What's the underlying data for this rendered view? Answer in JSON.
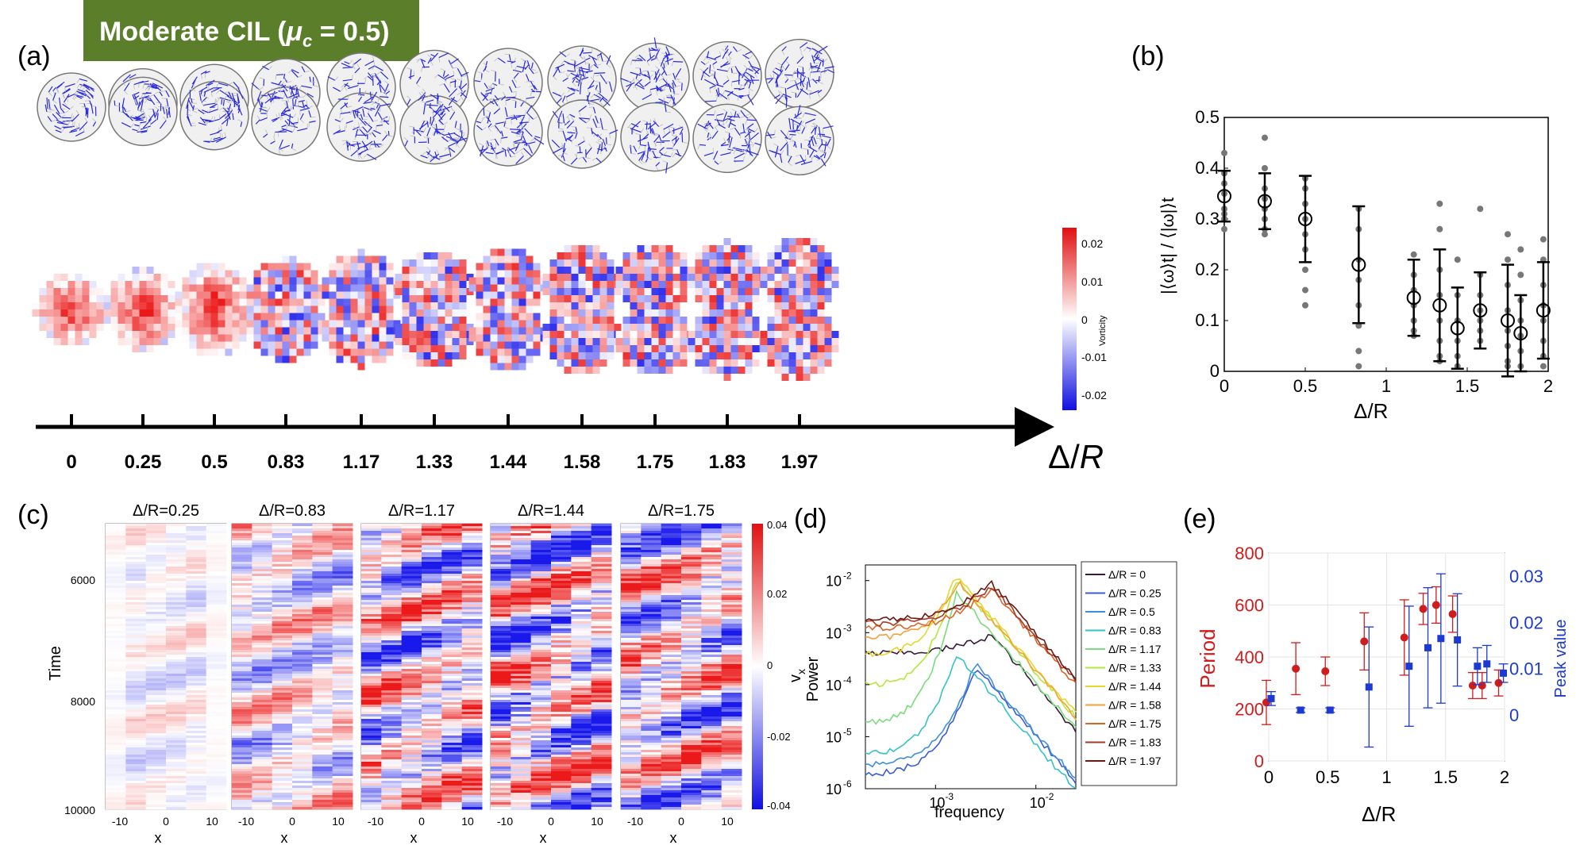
{
  "banner": {
    "label": "Moderate CIL (",
    "mu": "μ",
    "mu_sub": "c",
    "suffix": " = 0.5)",
    "color": "#5b7e2b"
  },
  "panels": {
    "a": "(a)",
    "b": "(b)",
    "c": "(c)",
    "d": "(d)",
    "e": "(e)"
  },
  "panel_a": {
    "delta_values": [
      "0",
      "0.25",
      "0.5",
      "0.83",
      "1.17",
      "1.33",
      "1.44",
      "1.58",
      "1.75",
      "1.83",
      "1.97"
    ],
    "axis_symbol": "Δ",
    "axis_var": "R",
    "colorbar": {
      "label": "Vorticity",
      "ticks": [
        "0.02",
        "0.01",
        "0",
        "-0.01",
        "-0.02"
      ],
      "min": -0.025,
      "max": 0.025
    }
  },
  "chart_data": [
    {
      "id": "b",
      "type": "scatter",
      "title": "",
      "xlabel": "Δ/R",
      "ylabel": "|⟨ω⟩t| / ⟨|ω|⟩t",
      "xlim": [
        0,
        2
      ],
      "ylim": [
        0,
        0.5
      ],
      "xticks": [
        "0",
        "0.5",
        "1",
        "1.5",
        "2"
      ],
      "yticks": [
        "0",
        "0.1",
        "0.2",
        "0.3",
        "0.4",
        "0.5"
      ],
      "series": [
        {
          "name": "mean",
          "x": [
            0,
            0.25,
            0.5,
            0.83,
            1.17,
            1.33,
            1.44,
            1.58,
            1.75,
            1.83,
            1.97
          ],
          "values": [
            0.345,
            0.335,
            0.3,
            0.21,
            0.145,
            0.13,
            0.085,
            0.12,
            0.1,
            0.075,
            0.12
          ],
          "error": [
            0.05,
            0.055,
            0.085,
            0.115,
            0.075,
            0.11,
            0.08,
            0.075,
            0.11,
            0.075,
            0.095
          ]
        },
        {
          "name": "samples",
          "points": [
            [
              0,
              0.43
            ],
            [
              0,
              0.39
            ],
            [
              0,
              0.37
            ],
            [
              0,
              0.35
            ],
            [
              0,
              0.32
            ],
            [
              0,
              0.31
            ],
            [
              0,
              0.3
            ],
            [
              0,
              0.28
            ],
            [
              0.25,
              0.46
            ],
            [
              0.25,
              0.4
            ],
            [
              0.25,
              0.36
            ],
            [
              0.25,
              0.34
            ],
            [
              0.25,
              0.32
            ],
            [
              0.25,
              0.3
            ],
            [
              0.25,
              0.28
            ],
            [
              0.25,
              0.27
            ],
            [
              0.5,
              0.38
            ],
            [
              0.5,
              0.36
            ],
            [
              0.5,
              0.33
            ],
            [
              0.5,
              0.3
            ],
            [
              0.5,
              0.27
            ],
            [
              0.5,
              0.24
            ],
            [
              0.5,
              0.2
            ],
            [
              0.5,
              0.16
            ],
            [
              0.5,
              0.13
            ],
            [
              0.83,
              0.32
            ],
            [
              0.83,
              0.28
            ],
            [
              0.83,
              0.22
            ],
            [
              0.83,
              0.18
            ],
            [
              0.83,
              0.13
            ],
            [
              0.83,
              0.09
            ],
            [
              0.83,
              0.04
            ],
            [
              0.83,
              0.01
            ],
            [
              1.17,
              0.23
            ],
            [
              1.17,
              0.19
            ],
            [
              1.17,
              0.16
            ],
            [
              1.17,
              0.13
            ],
            [
              1.17,
              0.1
            ],
            [
              1.17,
              0.08
            ],
            [
              1.17,
              0.07
            ],
            [
              1.33,
              0.33
            ],
            [
              1.33,
              0.28
            ],
            [
              1.33,
              0.2
            ],
            [
              1.33,
              0.15
            ],
            [
              1.33,
              0.1
            ],
            [
              1.33,
              0.06
            ],
            [
              1.33,
              0.03
            ],
            [
              1.33,
              0.02
            ],
            [
              1.44,
              0.22
            ],
            [
              1.44,
              0.15
            ],
            [
              1.44,
              0.1
            ],
            [
              1.44,
              0.06
            ],
            [
              1.44,
              0.03
            ],
            [
              1.44,
              0.01
            ],
            [
              1.58,
              0.32
            ],
            [
              1.58,
              0.19
            ],
            [
              1.58,
              0.15
            ],
            [
              1.58,
              0.12
            ],
            [
              1.58,
              0.1
            ],
            [
              1.58,
              0.08
            ],
            [
              1.58,
              0.06
            ],
            [
              1.75,
              0.27
            ],
            [
              1.75,
              0.22
            ],
            [
              1.75,
              0.17
            ],
            [
              1.75,
              0.12
            ],
            [
              1.75,
              0.08
            ],
            [
              1.75,
              0.05
            ],
            [
              1.75,
              0.02
            ],
            [
              1.75,
              0.01
            ],
            [
              1.83,
              0.24
            ],
            [
              1.83,
              0.19
            ],
            [
              1.83,
              0.14
            ],
            [
              1.83,
              0.1
            ],
            [
              1.83,
              0.07
            ],
            [
              1.83,
              0.04
            ],
            [
              1.83,
              0.01
            ],
            [
              1.97,
              0.26
            ],
            [
              1.97,
              0.22
            ],
            [
              1.97,
              0.17
            ],
            [
              1.97,
              0.13
            ],
            [
              1.97,
              0.1
            ],
            [
              1.97,
              0.06
            ],
            [
              1.97,
              0.03
            ],
            [
              1.97,
              0.01
            ]
          ]
        }
      ]
    },
    {
      "id": "c",
      "type": "heatmap",
      "xlabel": "x",
      "ylabel": "Time",
      "titles": [
        "Δ/R=0.25",
        "Δ/R=0.83",
        "Δ/R=1.17",
        "Δ/R=1.44",
        "Δ/R=1.75"
      ],
      "intensity": [
        0.22,
        0.55,
        0.85,
        1.0,
        0.85
      ],
      "xticks": [
        "-10",
        "0",
        "10"
      ],
      "yticks": [
        "6000",
        "8000",
        "10000"
      ],
      "ylim": [
        5000,
        10000
      ],
      "colorbar": {
        "label": "v",
        "label_sub": "x",
        "ticks": [
          "0.04",
          "0.02",
          "0",
          "-0.02",
          "-0.04"
        ]
      }
    },
    {
      "id": "d",
      "type": "line",
      "xlabel": "frequency",
      "ylabel": "Power",
      "xscale": "log",
      "yscale": "log",
      "xlim": [
        0.0002,
        0.025
      ],
      "ylim": [
        1e-06,
        0.02
      ],
      "xticks": [
        "10",
        "10"
      ],
      "xtick_exp": [
        "-3",
        "-2"
      ],
      "yticks": [
        "10",
        "10",
        "10",
        "10",
        "10"
      ],
      "ytick_exp": [
        "-6",
        "-5",
        "-4",
        "-3",
        "-2"
      ],
      "legend": [
        "Δ/R = 0",
        "Δ/R = 0.25",
        "Δ/R = 0.5",
        "Δ/R = 0.83",
        "Δ/R = 1.17",
        "Δ/R = 1.33",
        "Δ/R = 1.44",
        "Δ/R = 1.58",
        "Δ/R = 1.75",
        "Δ/R = 1.83",
        "Δ/R = 1.97"
      ],
      "series_colors": [
        "#3a1a3a",
        "#3b5bd6",
        "#3d8fdc",
        "#36c2c4",
        "#78dd7c",
        "#b5e63d",
        "#e8d62a",
        "#f2a23a",
        "#d9652a",
        "#a83a24",
        "#6a1a12"
      ],
      "series": [
        {
          "name": "Δ/R = 0",
          "low": 0.0004,
          "peak_f": 0.0036,
          "peak_p": 0.0009
        },
        {
          "name": "Δ/R = 0.25",
          "low": 2e-06,
          "peak_f": 0.0025,
          "peak_p": 0.00022
        },
        {
          "name": "Δ/R = 0.5",
          "low": 3e-06,
          "peak_f": 0.0025,
          "peak_p": 0.00025
        },
        {
          "name": "Δ/R = 0.83",
          "low": 5e-06,
          "peak_f": 0.0016,
          "peak_p": 0.0004
        },
        {
          "name": "Δ/R = 1.17",
          "low": 2e-05,
          "peak_f": 0.0016,
          "peak_p": 0.006
        },
        {
          "name": "Δ/R = 1.33",
          "low": 0.0001,
          "peak_f": 0.0016,
          "peak_p": 0.01
        },
        {
          "name": "Δ/R = 1.44",
          "low": 0.0004,
          "peak_f": 0.0016,
          "peak_p": 0.012
        },
        {
          "name": "Δ/R = 1.58",
          "low": 0.0008,
          "peak_f": 0.0017,
          "peak_p": 0.009
        },
        {
          "name": "Δ/R = 1.75",
          "low": 0.0012,
          "peak_f": 0.0036,
          "peak_p": 0.007
        },
        {
          "name": "Δ/R = 1.83",
          "low": 0.0015,
          "peak_f": 0.0036,
          "peak_p": 0.008
        },
        {
          "name": "Δ/R = 1.97",
          "low": 0.0018,
          "peak_f": 0.0036,
          "peak_p": 0.009
        }
      ]
    },
    {
      "id": "e",
      "type": "scatter",
      "xlabel": "Δ/R",
      "ylabel_left": "Period",
      "ylabel_right": "Peak value",
      "xlim": [
        0,
        2
      ],
      "ylim_left": [
        0,
        800
      ],
      "ylim_right": [
        -0.01,
        0.035
      ],
      "xticks": [
        "0",
        "0.5",
        "1",
        "1.5",
        "2"
      ],
      "yticks_left": [
        "0",
        "200",
        "400",
        "600",
        "800"
      ],
      "yticks_right": [
        "0",
        "0.01",
        "0.02",
        "0.03"
      ],
      "series": [
        {
          "name": "Period",
          "axis": "left",
          "color": "#d01c1c",
          "marker": "circle",
          "x": [
            0,
            0.25,
            0.5,
            0.83,
            1.17,
            1.33,
            1.44,
            1.58,
            1.75,
            1.83,
            1.97
          ],
          "values": [
            225,
            355,
            345,
            460,
            475,
            585,
            600,
            565,
            290,
            290,
            300
          ],
          "error": [
            85,
            100,
            55,
            110,
            145,
            60,
            70,
            70,
            50,
            50,
            50
          ]
        },
        {
          "name": "Peak value",
          "axis": "right",
          "color": "#1c3ad0",
          "marker": "square",
          "x": [
            0,
            0.25,
            0.5,
            0.83,
            1.17,
            1.33,
            1.44,
            1.58,
            1.75,
            1.83,
            1.97
          ],
          "values": [
            0.0035,
            0.001,
            0.001,
            0.006,
            0.0105,
            0.0145,
            0.0165,
            0.0162,
            0.0105,
            0.011,
            0.009
          ],
          "error": [
            0.0015,
            0.0005,
            0.0005,
            0.013,
            0.013,
            0.013,
            0.014,
            0.01,
            0.004,
            0.004,
            0.002
          ]
        }
      ]
    }
  ]
}
